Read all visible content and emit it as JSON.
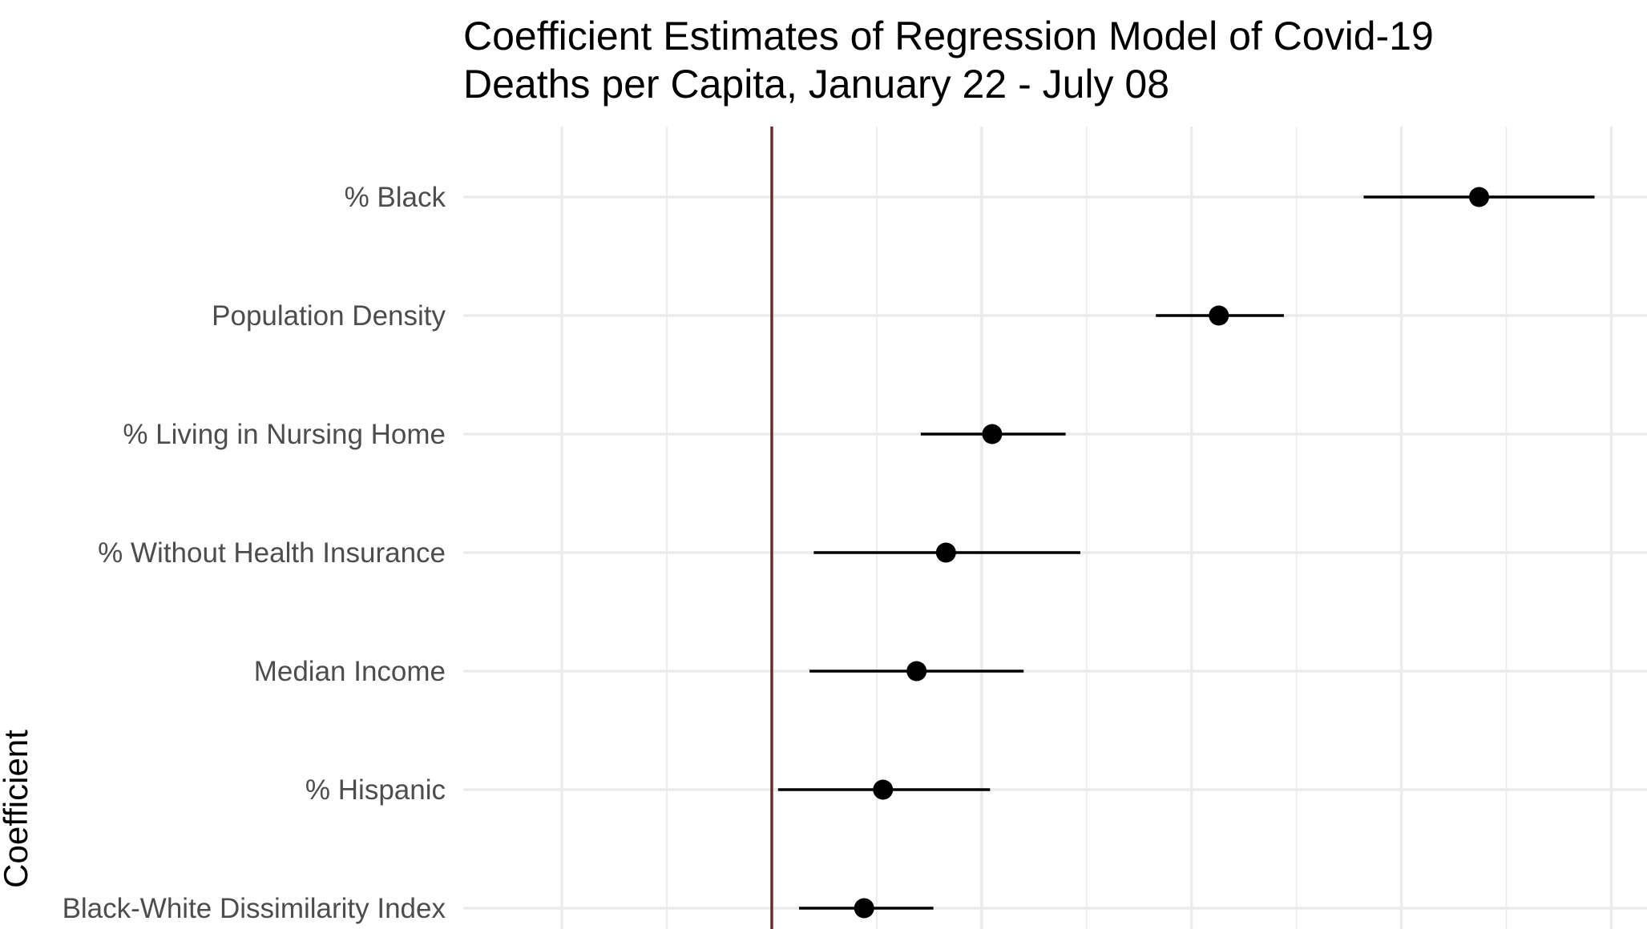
{
  "chart_data": {
    "type": "scatter",
    "title": [
      "Coefficient Estimates of Regression Model of Covid-19",
      "Deaths per Capita, January 22 - July 08"
    ],
    "xlabel": "",
    "ylabel": "Coefficient",
    "xlim": [
      -1.47,
      4.17
    ],
    "zero_line": 0,
    "zero_line_color": "#6b2a26",
    "grid": true,
    "series": [
      {
        "categories": [
          "% Black",
          "Population Density",
          "% Living in Nursing Home",
          "% Without Health Insurance",
          "Median Income",
          "% Hispanic",
          "Black-White Dissimilarity Index"
        ],
        "estimate": [
          3.37,
          2.13,
          1.05,
          0.83,
          0.69,
          0.53,
          0.44
        ],
        "lower": [
          2.82,
          1.83,
          0.71,
          0.2,
          0.18,
          0.03,
          0.13
        ],
        "upper": [
          3.92,
          2.44,
          1.4,
          1.47,
          1.2,
          1.04,
          0.77
        ]
      }
    ]
  }
}
